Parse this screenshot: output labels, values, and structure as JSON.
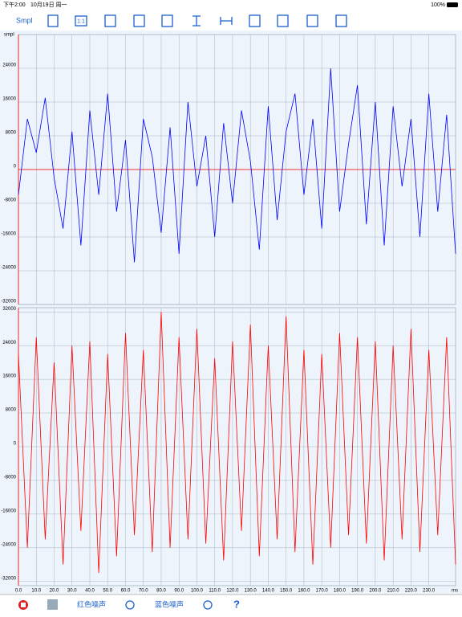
{
  "status_bar": {
    "time": "下午2:00",
    "date": "10月19日 周一",
    "battery": "100%"
  },
  "toolbar": {
    "mode": "Smpl",
    "one_to_one": "1:1"
  },
  "bottom_bar": {
    "red_noise": "红色噪声",
    "blue_noise": "蓝色噪声",
    "help": "?"
  },
  "chart_data": [
    {
      "type": "line",
      "ylabel": "smpl",
      "color": "#0000ff",
      "zero_line_color": "#ff0000",
      "x": [
        0,
        5,
        10,
        15,
        20,
        25,
        30,
        35,
        40,
        45,
        50,
        55,
        60,
        65,
        70,
        75,
        80,
        85,
        90,
        95,
        100,
        105,
        110,
        115,
        120,
        125,
        130,
        135,
        140,
        145,
        150,
        155,
        160,
        165,
        170,
        175,
        180,
        185,
        190,
        195,
        200,
        205,
        210,
        215,
        220,
        225,
        230,
        235,
        240,
        245
      ],
      "values": [
        -6000,
        12000,
        4000,
        17000,
        -2000,
        -14000,
        9000,
        -18000,
        14000,
        -6000,
        18000,
        -10000,
        7000,
        -22000,
        12000,
        3000,
        -15000,
        10000,
        -20000,
        16000,
        -4000,
        8000,
        -16000,
        11000,
        -8000,
        14000,
        2000,
        -19000,
        15000,
        -12000,
        9000,
        18000,
        -6000,
        12000,
        -14000,
        24000,
        -10000,
        6000,
        20000,
        -13000,
        16000,
        -18000,
        15000,
        -4000,
        12000,
        -16000,
        18000,
        -10000,
        13000,
        -20000
      ],
      "xlim": [
        0,
        245
      ],
      "ylim": [
        -32000,
        32000
      ],
      "xticks": [
        0,
        10,
        20,
        30,
        40,
        50,
        60,
        70,
        80,
        90,
        100,
        110,
        120,
        130,
        140,
        150,
        160,
        170,
        180,
        190,
        200,
        210,
        220,
        230
      ],
      "yticks": [
        24000,
        16000,
        8000,
        0,
        -8000,
        -16000,
        -24000,
        -32000
      ],
      "grid": true
    },
    {
      "type": "line",
      "xlabel": "ms",
      "color": "#ff0000",
      "x": [
        0,
        5,
        10,
        15,
        20,
        25,
        30,
        35,
        40,
        45,
        50,
        55,
        60,
        65,
        70,
        75,
        80,
        85,
        90,
        95,
        100,
        105,
        110,
        115,
        120,
        125,
        130,
        135,
        140,
        145,
        150,
        155,
        160,
        165,
        170,
        175,
        180,
        185,
        190,
        195,
        200,
        205,
        210,
        215,
        220,
        225,
        230,
        235,
        240,
        245
      ],
      "values": [
        22000,
        -24000,
        26000,
        -22000,
        20000,
        -28000,
        24000,
        -20000,
        25000,
        -30000,
        22000,
        -26000,
        27000,
        -21000,
        23000,
        -25000,
        32000,
        -24000,
        26000,
        -22000,
        28000,
        -23000,
        21000,
        -27000,
        25000,
        -20000,
        29000,
        -26000,
        24000,
        -22000,
        31000,
        -25000,
        23000,
        -28000,
        22000,
        -24000,
        27000,
        -21000,
        26000,
        -23000,
        25000,
        -27000,
        24000,
        -22000,
        28000,
        -25000,
        23000,
        -21000,
        26000,
        -28000
      ],
      "xlim": [
        0,
        245
      ],
      "ylim": [
        -33000,
        33000
      ],
      "xticks": [
        {
          "value": 0,
          "label": "0.0"
        },
        {
          "value": 10,
          "label": "10.0"
        },
        {
          "value": 20,
          "label": "20.0"
        },
        {
          "value": 30,
          "label": "30.0"
        },
        {
          "value": 40,
          "label": "40.0"
        },
        {
          "value": 50,
          "label": "50.0"
        },
        {
          "value": 60,
          "label": "60.0"
        },
        {
          "value": 70,
          "label": "70.0"
        },
        {
          "value": 80,
          "label": "80.0"
        },
        {
          "value": 90,
          "label": "90.0"
        },
        {
          "value": 100,
          "label": "100.0"
        },
        {
          "value": 110,
          "label": "110.0"
        },
        {
          "value": 120,
          "label": "120.0"
        },
        {
          "value": 130,
          "label": "130.0"
        },
        {
          "value": 140,
          "label": "140.0"
        },
        {
          "value": 150,
          "label": "150.0"
        },
        {
          "value": 160,
          "label": "160.0"
        },
        {
          "value": 170,
          "label": "170.0"
        },
        {
          "value": 180,
          "label": "180.0"
        },
        {
          "value": 190,
          "label": "190.0"
        },
        {
          "value": 200,
          "label": "200.0"
        },
        {
          "value": 210,
          "label": "210.0"
        },
        {
          "value": 220,
          "label": "220.0"
        },
        {
          "value": 230,
          "label": "230.0"
        }
      ],
      "yticks": [
        32000,
        24000,
        16000,
        8000,
        0,
        -8000,
        -16000,
        -24000,
        -32000
      ],
      "grid": true
    }
  ]
}
